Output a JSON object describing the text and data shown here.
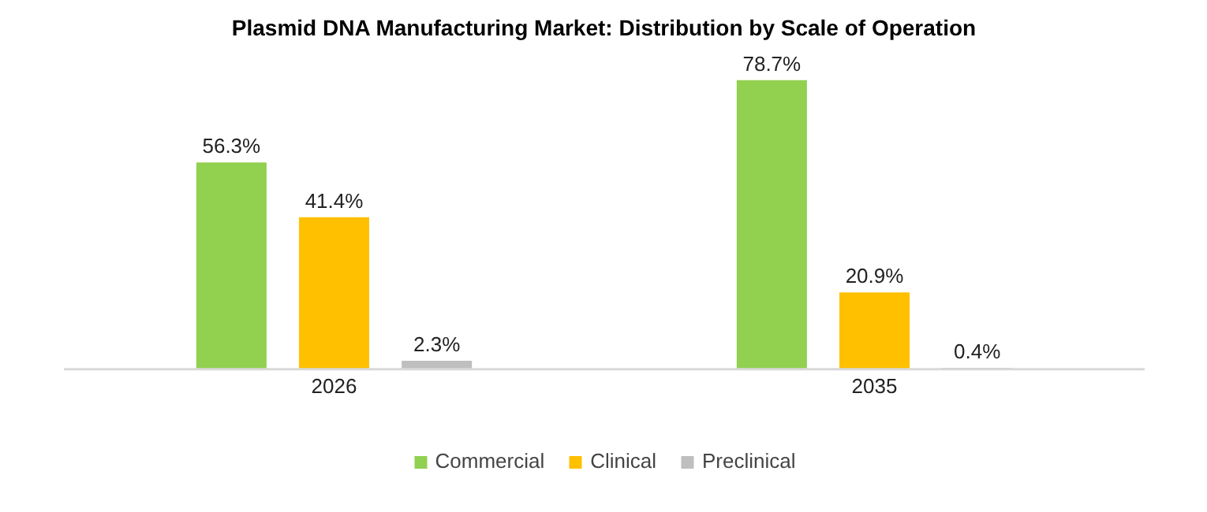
{
  "chart_data": {
    "type": "bar",
    "title": "Plasmid DNA Manufacturing Market: Distribution by Scale of Operation",
    "categories": [
      "2026",
      "2035"
    ],
    "series": [
      {
        "name": "Commercial",
        "color": "#92d050",
        "values": [
          56.3,
          78.7
        ],
        "value_labels": [
          "56.3%",
          "78.7%"
        ]
      },
      {
        "name": "Clinical",
        "color": "#ffc000",
        "values": [
          41.4,
          20.9
        ],
        "value_labels": [
          "41.4%",
          "20.9%"
        ]
      },
      {
        "name": "Preclinical",
        "color": "#bfbfbf",
        "values": [
          2.3,
          0.4
        ],
        "value_labels": [
          "2.3%",
          "0.4%"
        ]
      }
    ],
    "legend": "bottom"
  }
}
